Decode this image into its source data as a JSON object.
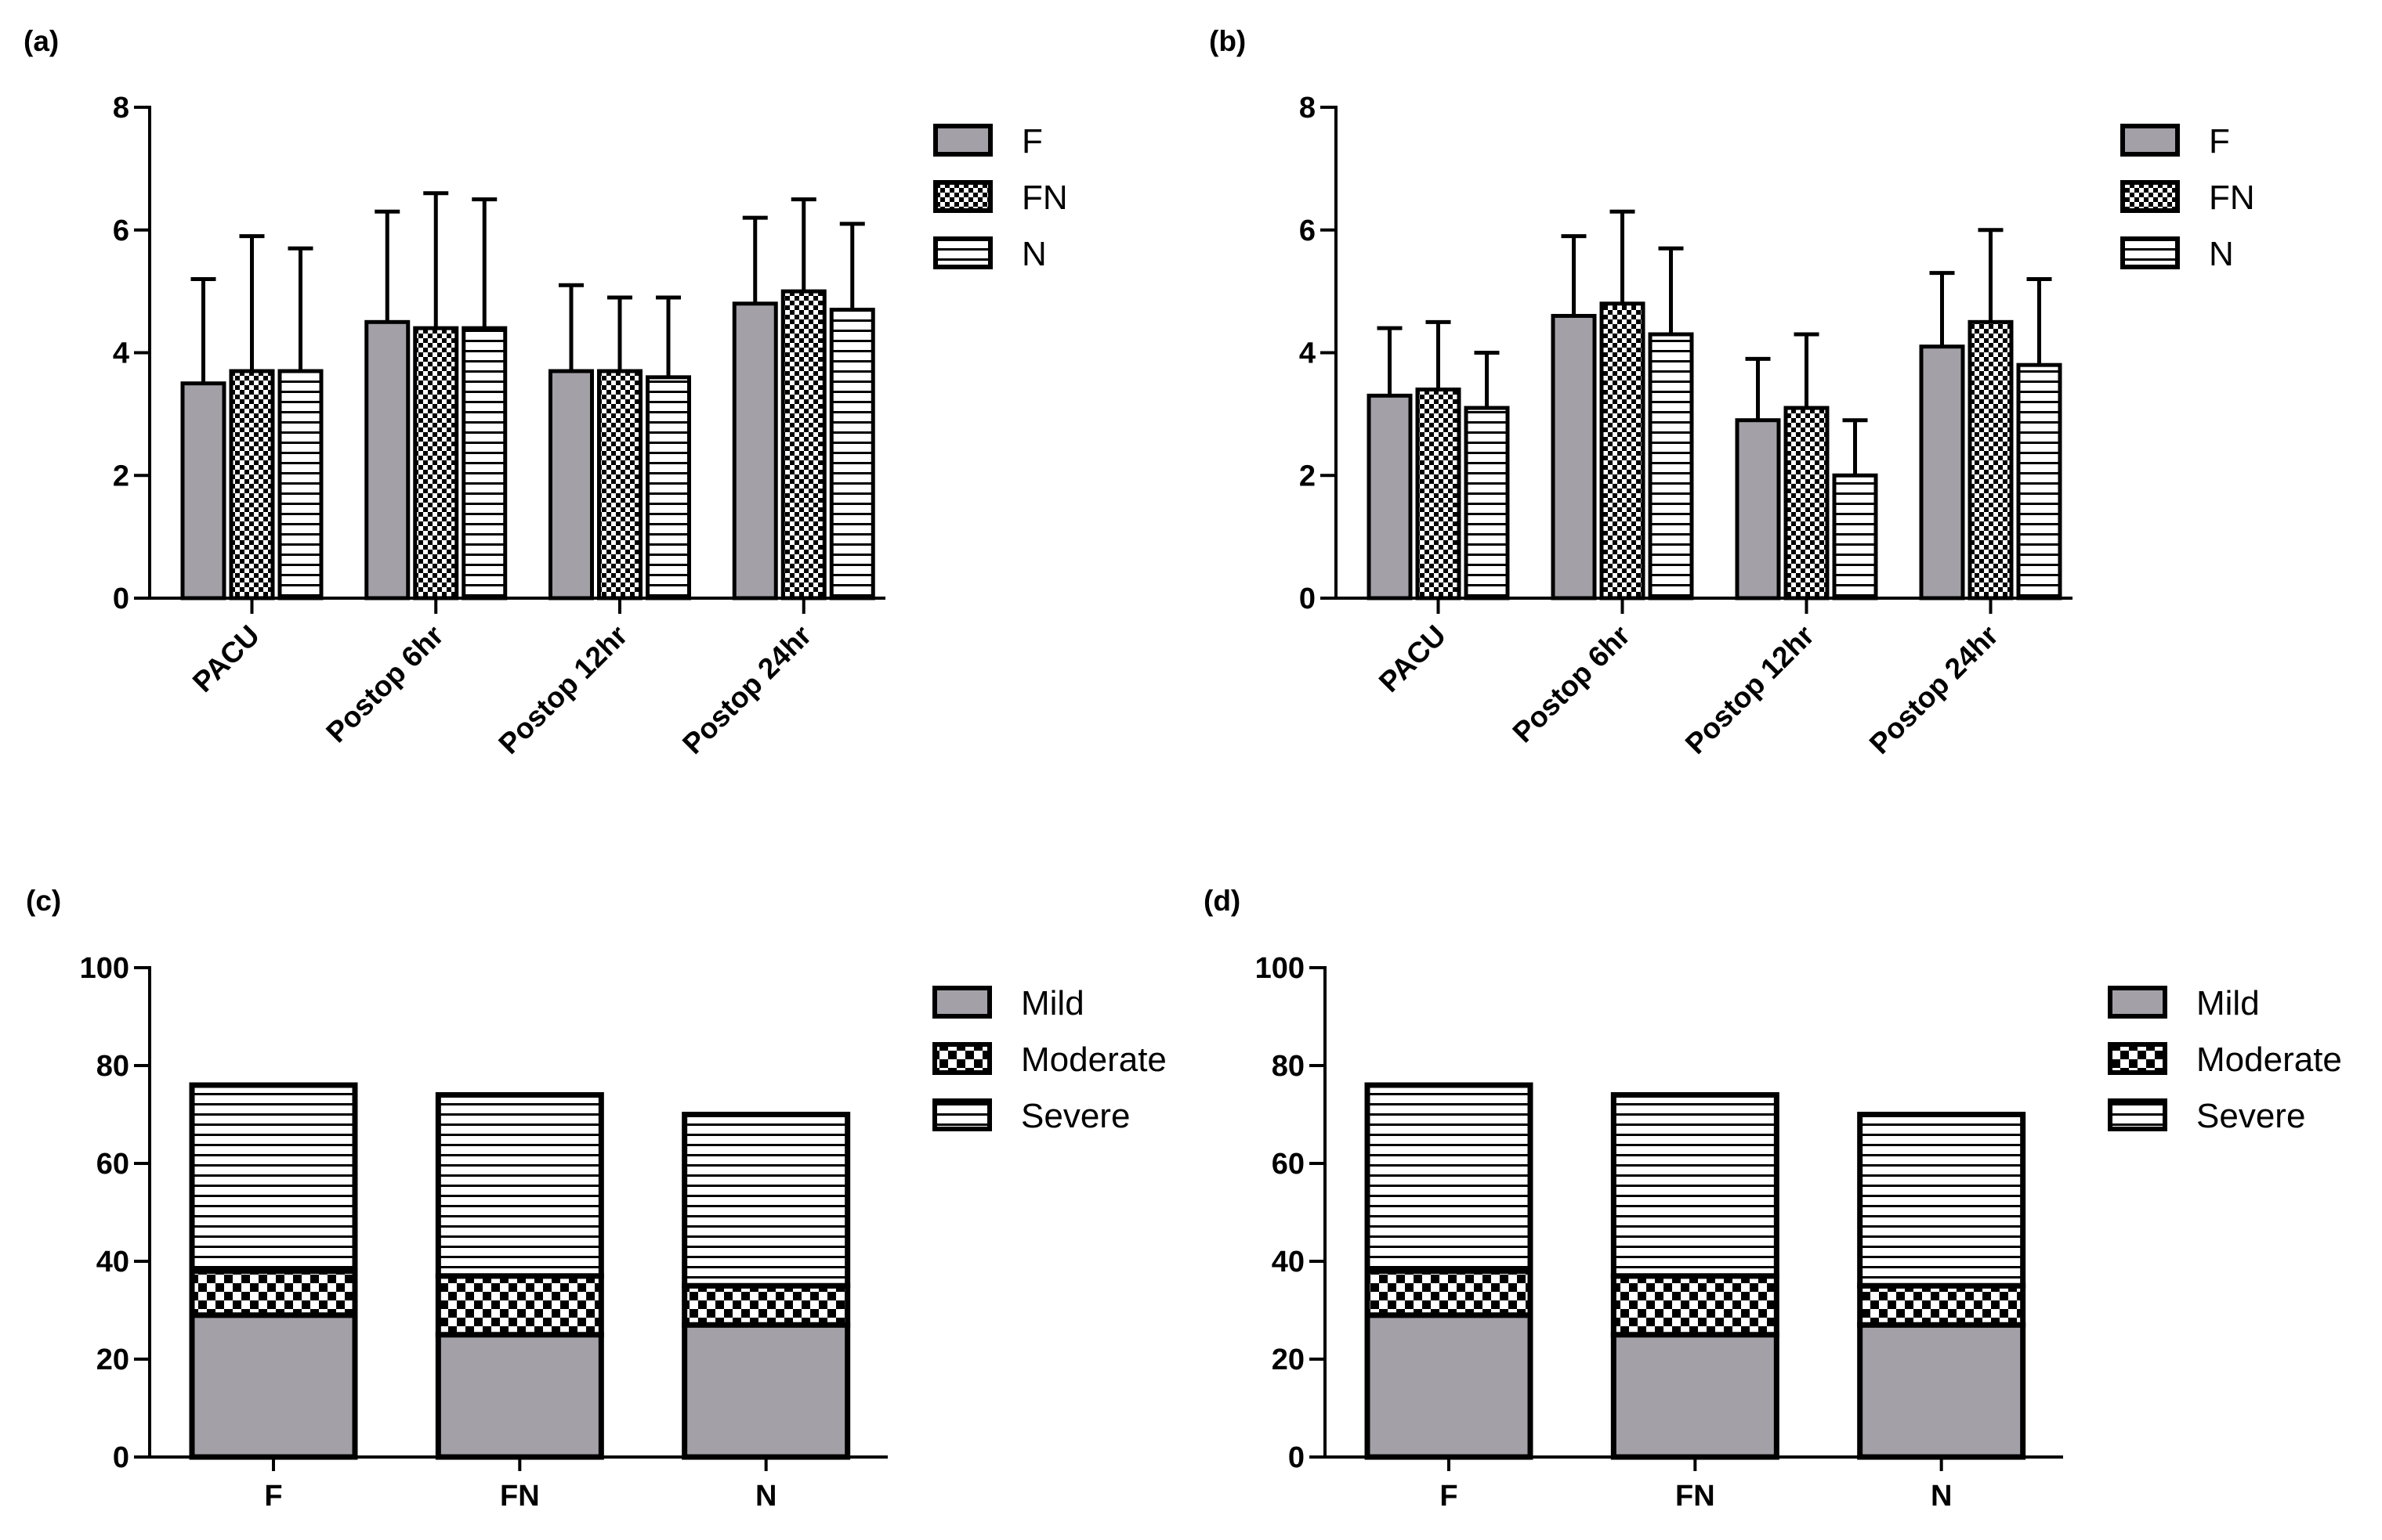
{
  "colors": {
    "gray_fill": "#a3a1a7",
    "stroke": "#000000",
    "background": "#ffffff"
  },
  "chart_data": [
    {
      "panel": "(a)",
      "type": "bar",
      "categories": [
        "PACU",
        "Postop 6hr",
        "Postop 12hr",
        "Postop 24hr"
      ],
      "series": [
        {
          "name": "F",
          "pattern": "gray",
          "values": [
            3.5,
            4.5,
            3.7,
            4.8
          ],
          "errors": [
            1.7,
            1.8,
            1.4,
            1.4
          ]
        },
        {
          "name": "FN",
          "pattern": "checker",
          "values": [
            3.7,
            4.4,
            3.7,
            5.0
          ],
          "errors": [
            2.2,
            2.2,
            1.2,
            1.5
          ]
        },
        {
          "name": "N",
          "pattern": "hlines",
          "values": [
            3.7,
            4.4,
            3.6,
            4.7
          ],
          "errors": [
            2.0,
            2.1,
            1.3,
            1.4
          ]
        }
      ],
      "ylim": [
        0,
        8
      ],
      "yticks": [
        "0",
        "2",
        "4",
        "6",
        "8"
      ],
      "legend": [
        "F",
        "FN",
        "N"
      ],
      "legend_position": "top-right"
    },
    {
      "panel": "(b)",
      "type": "bar",
      "categories": [
        "PACU",
        "Postop 6hr",
        "Postop 12hr",
        "Postop 24hr"
      ],
      "series": [
        {
          "name": "F",
          "pattern": "gray",
          "values": [
            3.3,
            4.6,
            2.9,
            4.1
          ],
          "errors": [
            1.1,
            1.3,
            1.0,
            1.2
          ]
        },
        {
          "name": "FN",
          "pattern": "checker",
          "values": [
            3.4,
            4.8,
            3.1,
            4.5
          ],
          "errors": [
            1.1,
            1.5,
            1.2,
            1.5
          ]
        },
        {
          "name": "N",
          "pattern": "hlines",
          "values": [
            3.1,
            4.3,
            2.0,
            3.8
          ],
          "errors": [
            0.9,
            1.4,
            0.9,
            1.4
          ]
        }
      ],
      "ylim": [
        0,
        8
      ],
      "yticks": [
        "0",
        "2",
        "4",
        "6",
        "8"
      ],
      "legend": [
        "F",
        "FN",
        "N"
      ],
      "legend_position": "top-right"
    },
    {
      "panel": "(c)",
      "type": "bar",
      "stacked": true,
      "categories": [
        "F",
        "FN",
        "N"
      ],
      "series": [
        {
          "name": "Mild",
          "pattern": "gray",
          "values": [
            29,
            25,
            27
          ]
        },
        {
          "name": "Moderate",
          "pattern": "checker",
          "values": [
            9,
            12,
            8
          ]
        },
        {
          "name": "Severe",
          "pattern": "hlines",
          "values": [
            38,
            37,
            35
          ]
        }
      ],
      "ylim": [
        0,
        100
      ],
      "yticks": [
        "0",
        "20",
        "40",
        "60",
        "80",
        "100"
      ],
      "legend": [
        "Mild",
        "Moderate",
        "Severe"
      ],
      "legend_position": "top-right"
    },
    {
      "panel": "(d)",
      "type": "bar",
      "stacked": true,
      "categories": [
        "F",
        "FN",
        "N"
      ],
      "series": [
        {
          "name": "Mild",
          "pattern": "gray",
          "values": [
            29,
            25,
            27
          ]
        },
        {
          "name": "Moderate",
          "pattern": "checker",
          "values": [
            9,
            12,
            8
          ]
        },
        {
          "name": "Severe",
          "pattern": "hlines",
          "values": [
            38,
            37,
            35
          ]
        }
      ],
      "ylim": [
        0,
        100
      ],
      "yticks": [
        "0",
        "20",
        "40",
        "60",
        "80",
        "100"
      ],
      "legend": [
        "Mild",
        "Moderate",
        "Severe"
      ],
      "legend_position": "top-right"
    }
  ]
}
